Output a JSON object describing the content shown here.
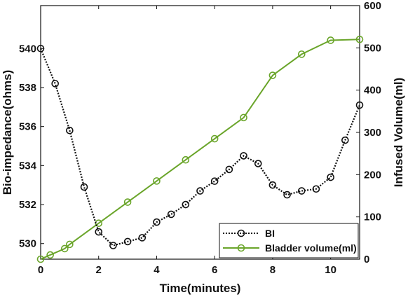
{
  "chart_data": {
    "type": "line",
    "xlabel": "Time(minutes)",
    "ylabel_left": "Bio-impedance(ohms)",
    "ylabel_right": "Infused Volume(ml)",
    "xlim": [
      0,
      11
    ],
    "xticks": [
      0,
      2,
      4,
      6,
      8,
      10
    ],
    "ylim_left": [
      529.2,
      542.2
    ],
    "yticks_left": [
      530,
      532,
      534,
      536,
      538,
      540
    ],
    "ylim_right": [
      0,
      600
    ],
    "yticks_right": [
      0,
      100,
      200,
      300,
      400,
      500,
      600
    ],
    "grid": false,
    "legend_position": "bottom-right",
    "series": [
      {
        "name": "BI",
        "axis": "left",
        "color": "#111111",
        "line_style": "dotted",
        "marker": "circle",
        "x": [
          0,
          0.5,
          1,
          1.5,
          2,
          2.5,
          3,
          3.5,
          4,
          4.5,
          5,
          5.5,
          6,
          6.5,
          7,
          7.5,
          8,
          8.5,
          9,
          9.5,
          10,
          10.5,
          11
        ],
        "y": [
          540.0,
          538.2,
          535.8,
          532.9,
          530.6,
          529.9,
          530.1,
          530.3,
          531.1,
          531.5,
          532.0,
          532.7,
          533.2,
          533.8,
          534.5,
          534.1,
          533.0,
          532.5,
          532.7,
          532.8,
          533.4,
          535.3,
          537.1
        ]
      },
      {
        "name": "Bladder volume(ml)",
        "axis": "right",
        "color": "#6aa52a",
        "line_style": "solid",
        "marker": "circle",
        "x": [
          0,
          0.33,
          0.83,
          1,
          2,
          3,
          4,
          5,
          6,
          7,
          8,
          9,
          10,
          11
        ],
        "y": [
          0,
          10,
          25,
          35,
          85,
          135,
          185,
          235,
          285,
          335,
          435,
          485,
          518,
          520
        ]
      }
    ]
  }
}
